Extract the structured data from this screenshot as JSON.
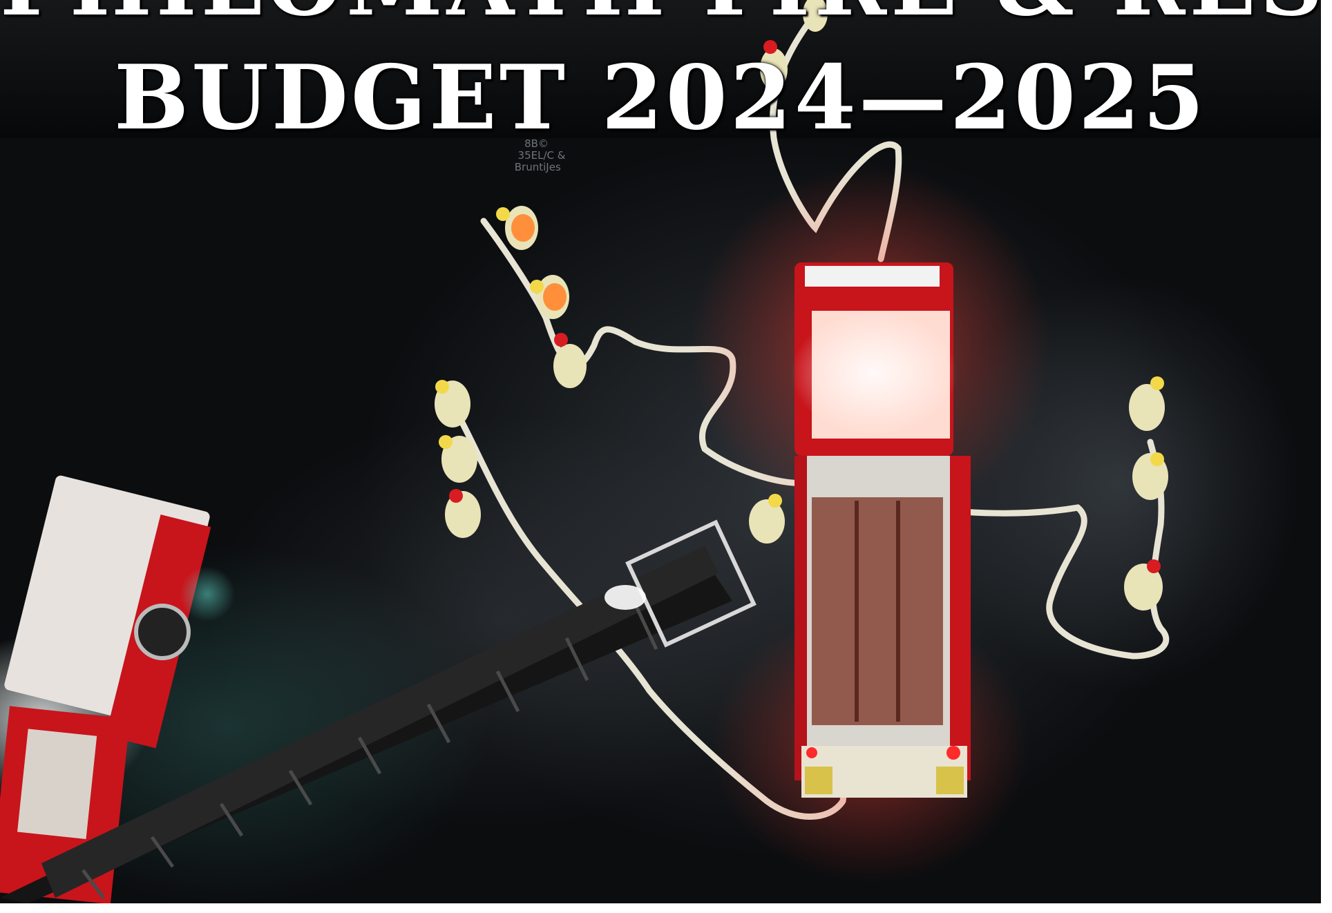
{
  "cover": {
    "title_line1": "PHILOMATH FIRE & RESCUE",
    "title_line2": "BUDGET 2024—2025"
  },
  "photo": {
    "subject": "aerial night view of fire engines, an aerial ladder and firefighters laying hose lines",
    "colors": {
      "pavement": "#0d0f11",
      "apparatus_red": "#c8141b",
      "turnout_gear": "#e9e3b8",
      "hose": "#e8e4d4",
      "ladder": "#1c1c1c"
    }
  }
}
